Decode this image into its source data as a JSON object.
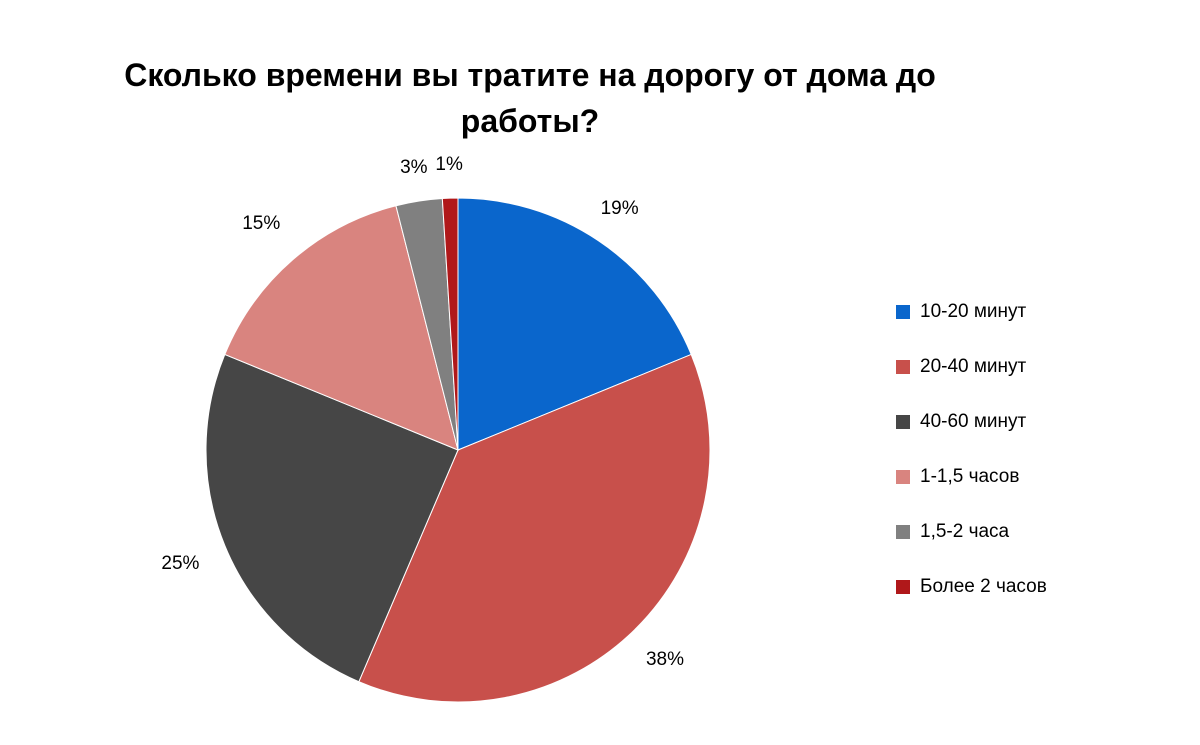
{
  "chart_data": {
    "type": "pie",
    "title": "Сколько времени вы тратите на дорогу от дома до работы?",
    "title_lines": [
      "Сколько времени вы тратите на дорогу от дома до",
      "работы?"
    ],
    "categories": [
      "10-20 минут",
      "20-40 минут",
      "40-60 минут",
      "1-1,5 часов",
      "1,5-2 часа",
      "Более 2 часов"
    ],
    "values": [
      19,
      38,
      25,
      15,
      3,
      1
    ],
    "labels": [
      "19%",
      "38%",
      "25%",
      "15%",
      "3%",
      "1%"
    ],
    "colors": [
      "#0a66cc",
      "#c8504b",
      "#464646",
      "#d9847f",
      "#808080",
      "#b0181a"
    ],
    "legend_position": "right"
  }
}
